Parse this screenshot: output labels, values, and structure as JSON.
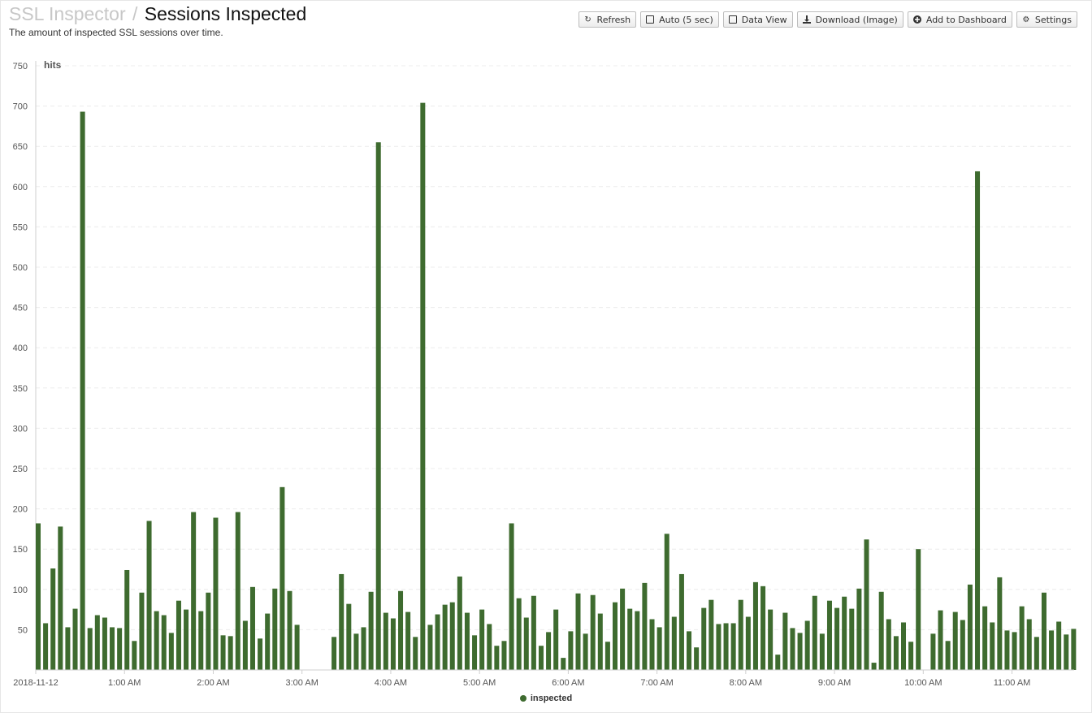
{
  "header": {
    "breadcrumb_parent": "SSL Inspector",
    "separator": "/",
    "title": "Sessions Inspected",
    "subtitle": "The amount of inspected SSL sessions over time."
  },
  "toolbar": {
    "refresh_label": "Refresh",
    "auto_label": "Auto (5 sec)",
    "data_view_label": "Data View",
    "download_label": "Download (Image)",
    "add_dashboard_label": "Add to Dashboard",
    "settings_label": "Settings"
  },
  "colors": {
    "bar": "#3e6b2f",
    "grid": "#ececec",
    "axis": "#cfcfcf"
  },
  "chart_data": {
    "type": "bar",
    "ylabel": "hits",
    "ylim": [
      0,
      750
    ],
    "yticks": [
      50,
      100,
      150,
      200,
      250,
      300,
      350,
      400,
      450,
      500,
      550,
      600,
      650,
      700,
      750
    ],
    "x_start": "2018-11-12 00:00",
    "x_end": "2018-11-12 11:42",
    "interval_minutes": 5,
    "xtick_labels": [
      "2018-11-12",
      "1:00 AM",
      "2:00 AM",
      "3:00 AM",
      "4:00 AM",
      "5:00 AM",
      "6:00 AM",
      "7:00 AM",
      "8:00 AM",
      "9:00 AM",
      "10:00 AM",
      "11:00 AM"
    ],
    "xtick_hours": [
      0,
      1,
      2,
      3,
      4,
      5,
      6,
      7,
      8,
      9,
      10,
      11
    ],
    "grid": true,
    "legend_position": "bottom-center",
    "series": [
      {
        "name": "inspected",
        "values": [
          182,
          58,
          126,
          178,
          53,
          76,
          693,
          52,
          68,
          65,
          53,
          52,
          124,
          36,
          96,
          185,
          73,
          68,
          46,
          86,
          75,
          196,
          73,
          96,
          189,
          43,
          42,
          196,
          61,
          103,
          39,
          70,
          101,
          227,
          98,
          56,
          0,
          0,
          0,
          0,
          41,
          119,
          82,
          45,
          53,
          97,
          655,
          71,
          64,
          98,
          72,
          41,
          704,
          56,
          69,
          81,
          84,
          116,
          71,
          43,
          75,
          57,
          30,
          36,
          182,
          89,
          65,
          92,
          30,
          47,
          75,
          15,
          48,
          95,
          45,
          93,
          70,
          35,
          84,
          101,
          76,
          73,
          108,
          63,
          53,
          169,
          66,
          119,
          48,
          28,
          77,
          87,
          57,
          58,
          58,
          87,
          66,
          109,
          104,
          75,
          19,
          71,
          52,
          46,
          61,
          92,
          45,
          86,
          77,
          91,
          76,
          101,
          162,
          9,
          97,
          63,
          42,
          59,
          35,
          150,
          0,
          45,
          74,
          36,
          72,
          62,
          106,
          619,
          79,
          59,
          115,
          49,
          47,
          79,
          63,
          41,
          96,
          49,
          60,
          44,
          51
        ]
      }
    ]
  }
}
